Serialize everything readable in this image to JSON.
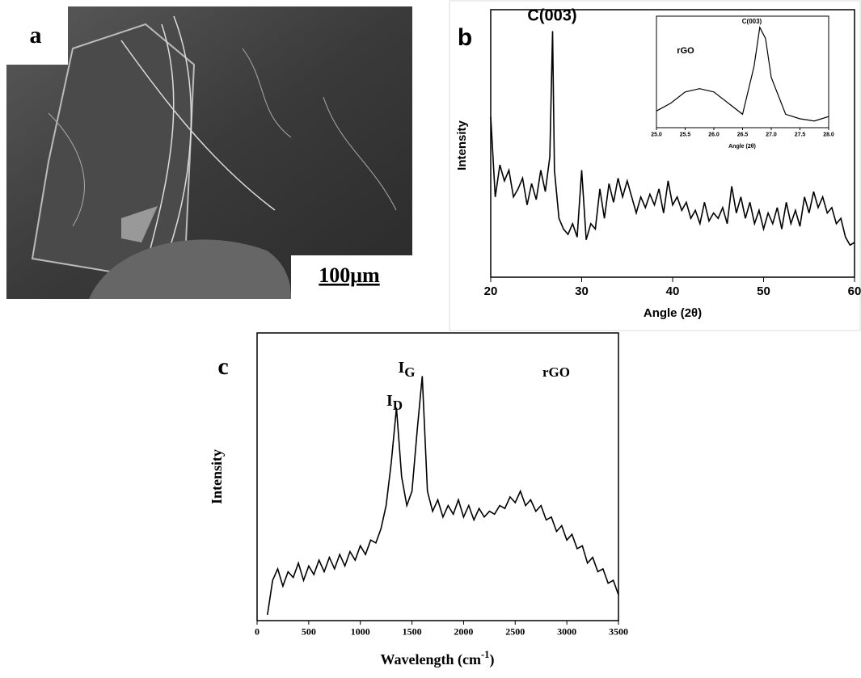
{
  "image": {
    "panel_label": "a",
    "scale_bar": "100μm"
  },
  "chart_data": [
    {
      "type": "line",
      "panel_label": "b",
      "x_label": "Angle (2θ)",
      "y_label": "Intensity",
      "color": "#000000",
      "annotations": [
        "C(003)"
      ],
      "xlim": [
        20,
        60
      ],
      "xticks": [
        20,
        30,
        40,
        50,
        60
      ],
      "ylim": [
        0,
        100
      ],
      "x": [
        20,
        20.5,
        21,
        21.5,
        22,
        22.5,
        23,
        23.5,
        24,
        24.5,
        25,
        25.5,
        26,
        26.5,
        26.8,
        27,
        27.5,
        28,
        28.5,
        29,
        29.5,
        30,
        30.5,
        31,
        31.5,
        32,
        32.5,
        33,
        33.5,
        34,
        34.5,
        35,
        35.5,
        36,
        36.5,
        37,
        37.5,
        38,
        38.5,
        39,
        39.5,
        40,
        40.5,
        41,
        41.5,
        42,
        42.5,
        43,
        43.5,
        44,
        44.5,
        45,
        45.5,
        46,
        46.5,
        47,
        47.5,
        48,
        48.5,
        49,
        49.5,
        50,
        50.5,
        51,
        51.5,
        52,
        52.5,
        53,
        53.5,
        54,
        54.5,
        55,
        55.5,
        56,
        56.5,
        57,
        57.5,
        58,
        58.5,
        59,
        59.5,
        60
      ],
      "values": [
        60,
        30,
        42,
        36,
        40,
        30,
        33,
        37,
        27,
        35,
        29,
        40,
        32,
        45,
        92,
        40,
        22,
        18,
        16,
        20,
        15,
        40,
        14,
        20,
        18,
        33,
        22,
        35,
        28,
        37,
        30,
        36,
        30,
        24,
        30,
        26,
        31,
        27,
        33,
        24,
        36,
        27,
        30,
        25,
        28,
        22,
        25,
        20,
        28,
        21,
        24,
        22,
        26,
        20,
        34,
        24,
        30,
        22,
        28,
        20,
        25,
        18,
        24,
        20,
        26,
        18,
        28,
        20,
        25,
        19,
        30,
        24,
        32,
        26,
        30,
        24,
        26,
        20,
        22,
        15,
        12,
        13
      ]
    },
    {
      "type": "line",
      "x_label": "Angle (2θ)",
      "color": "#000000",
      "annotations": [
        "rGO",
        "C(003)"
      ],
      "xlim": [
        25,
        28
      ],
      "xticks": [
        {
          "value": 25,
          "label": "25.0"
        },
        {
          "value": 25.5,
          "label": "25.5"
        },
        {
          "value": 26,
          "label": "26.0"
        },
        {
          "value": 26.5,
          "label": "26.5"
        },
        {
          "value": 27,
          "label": "27.0"
        },
        {
          "value": 27.5,
          "label": "27.5"
        },
        {
          "value": 28,
          "label": "28.0"
        }
      ],
      "ylim": [
        0,
        100
      ],
      "x": [
        25,
        25.25,
        25.5,
        25.75,
        26,
        26.25,
        26.5,
        26.7,
        26.8,
        26.9,
        27,
        27.25,
        27.5,
        27.75,
        28
      ],
      "values": [
        15,
        22,
        32,
        35,
        32,
        22,
        12,
        55,
        90,
        80,
        45,
        12,
        8,
        6,
        10
      ]
    },
    {
      "type": "line",
      "panel_label": "c",
      "x_label": {
        "text": "Wavelength (cm",
        "sup": "-1",
        "end": ")"
      },
      "y_label": "Intensity",
      "color": "#000000",
      "annotations": [
        {
          "text": "I",
          "sub": "D"
        },
        {
          "text": "I",
          "sub": "G"
        },
        {
          "text": "rGO"
        }
      ],
      "xlim": [
        0,
        3500
      ],
      "xticks": [
        0,
        500,
        1000,
        1500,
        2000,
        2500,
        3000,
        3500
      ],
      "ylim": [
        0,
        100
      ],
      "x": [
        100,
        150,
        200,
        250,
        300,
        350,
        400,
        450,
        500,
        550,
        600,
        650,
        700,
        750,
        800,
        850,
        900,
        950,
        1000,
        1050,
        1100,
        1150,
        1200,
        1250,
        1300,
        1350,
        1400,
        1450,
        1500,
        1550,
        1600,
        1650,
        1700,
        1750,
        1800,
        1850,
        1900,
        1950,
        2000,
        2050,
        2100,
        2150,
        2200,
        2250,
        2300,
        2350,
        2400,
        2450,
        2500,
        2550,
        2600,
        2650,
        2700,
        2750,
        2800,
        2850,
        2900,
        2950,
        3000,
        3050,
        3100,
        3150,
        3200,
        3250,
        3300,
        3350,
        3400,
        3450,
        3500
      ],
      "values": [
        2,
        14,
        18,
        12,
        17,
        15,
        20,
        14,
        19,
        16,
        21,
        17,
        22,
        18,
        23,
        19,
        24,
        21,
        26,
        23,
        28,
        27,
        32,
        40,
        55,
        74,
        50,
        40,
        45,
        66,
        85,
        45,
        38,
        42,
        36,
        40,
        37,
        42,
        36,
        40,
        35,
        39,
        36,
        38,
        37,
        40,
        39,
        43,
        41,
        45,
        40,
        42,
        38,
        40,
        35,
        36,
        31,
        33,
        28,
        30,
        25,
        26,
        20,
        22,
        17,
        18,
        13,
        14,
        9
      ]
    }
  ]
}
